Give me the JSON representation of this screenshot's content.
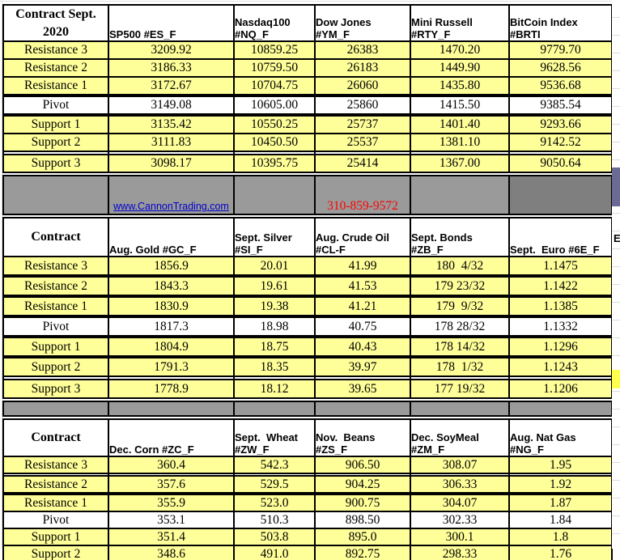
{
  "colors": {
    "cell-yellow": "#FFFF99",
    "band-gray": "#9A9A9A",
    "band-dark-gray": "#7F7F7F",
    "edge-blue": "#6A6A94",
    "edge-yellow": "#FFFF4D",
    "link-blue": "#0000CC",
    "phone-red": "#FF0000",
    "border-black": "#000000"
  },
  "band": {
    "website_link": "www.CannonTrading.com",
    "phone_number": "310-859-9572"
  },
  "edge": {
    "clipped_letter": "E"
  },
  "tables": [
    {
      "corner": "Contract Sept.\n2020",
      "columns": [
        "SP500 #ES_F",
        "Nasdaq100\n#NQ_F",
        "Dow Jones\n#YM_F",
        "Mini Russell\n#RTY_F",
        "BitCoin Index\n#BRTI"
      ],
      "rows": [
        {
          "label": "Resistance 3",
          "yellow": true,
          "values": [
            "3209.92",
            "10859.25",
            "26383",
            "1470.20",
            "9779.70"
          ]
        },
        {
          "label": "Resistance 2",
          "yellow": true,
          "values": [
            "3186.33",
            "10759.50",
            "26183",
            "1449.90",
            "9628.56"
          ]
        },
        {
          "label": "Resistance 1",
          "yellow": true,
          "values": [
            "3172.67",
            "10704.75",
            "26060",
            "1435.80",
            "9536.68"
          ]
        },
        {
          "label": "Pivot",
          "yellow": false,
          "values": [
            "3149.08",
            "10605.00",
            "25860",
            "1415.50",
            "9385.54"
          ]
        },
        {
          "label": "Support 1",
          "yellow": true,
          "values": [
            "3135.42",
            "10550.25",
            "25737",
            "1401.40",
            "9293.66"
          ]
        },
        {
          "label": "Support 2",
          "yellow": true,
          "values": [
            "3111.83",
            "10450.50",
            "25537",
            "1381.10",
            "9142.52"
          ]
        },
        {
          "label": "Support 3",
          "yellow": true,
          "values": [
            "3098.17",
            "10395.75",
            "25414",
            "1367.00",
            "9050.64"
          ]
        }
      ]
    },
    {
      "corner": "Contract",
      "columns": [
        "Aug. Gold #GC_F",
        "Sept. Silver\n#SI_F",
        "Aug. Crude Oil\n#CL-F",
        "Sept. Bonds\n#ZB_F",
        "Sept.  Euro #6E_F"
      ],
      "rows": [
        {
          "label": "Resistance 3",
          "yellow": true,
          "values": [
            "1856.9",
            "20.01",
            "41.99",
            "180  4/32",
            "1.1475"
          ]
        },
        {
          "label": "Resistance 2",
          "yellow": true,
          "values": [
            "1843.3",
            "19.61",
            "41.53",
            "179 23/32",
            "1.1422"
          ]
        },
        {
          "label": "Resistance 1",
          "yellow": true,
          "values": [
            "1830.9",
            "19.38",
            "41.21",
            "179  9/32",
            "1.1385"
          ]
        },
        {
          "label": "Pivot",
          "yellow": false,
          "values": [
            "1817.3",
            "18.98",
            "40.75",
            "178 28/32",
            "1.1332"
          ]
        },
        {
          "label": "Support 1",
          "yellow": true,
          "values": [
            "1804.9",
            "18.75",
            "40.43",
            "178 14/32",
            "1.1296"
          ]
        },
        {
          "label": "Support 2",
          "yellow": true,
          "values": [
            "1791.3",
            "18.35",
            "39.97",
            "178  1/32",
            "1.1243"
          ]
        },
        {
          "label": "Support 3",
          "yellow": true,
          "values": [
            "1778.9",
            "18.12",
            "39.65",
            "177 19/32",
            "1.1206"
          ]
        }
      ]
    },
    {
      "corner": "Contract",
      "columns": [
        "Dec. Corn #ZC_F",
        "Sept.  Wheat\n#ZW_F",
        "Nov.  Beans\n#ZS_F",
        "Dec. SoyMeal\n#ZM_F",
        "Aug. Nat Gas\n#NG_F"
      ],
      "rows": [
        {
          "label": "Resistance 3",
          "yellow": true,
          "values": [
            "360.4",
            "542.3",
            "906.50",
            "308.07",
            "1.95"
          ]
        },
        {
          "label": "Resistance 2",
          "yellow": true,
          "values": [
            "357.6",
            "529.5",
            "904.25",
            "306.33",
            "1.92"
          ]
        },
        {
          "label": "Resistance 1",
          "yellow": true,
          "values": [
            "355.9",
            "523.0",
            "900.75",
            "304.07",
            "1.87"
          ]
        },
        {
          "label": "Pivot",
          "yellow": false,
          "values": [
            "353.1",
            "510.3",
            "898.50",
            "302.33",
            "1.84"
          ]
        },
        {
          "label": "Support 1",
          "yellow": true,
          "values": [
            "351.4",
            "503.8",
            "895.0",
            "300.1",
            "1.8"
          ]
        },
        {
          "label": "Support 2",
          "yellow": true,
          "values": [
            "348.6",
            "491.0",
            "892.75",
            "298.33",
            "1.76"
          ]
        }
      ]
    }
  ]
}
